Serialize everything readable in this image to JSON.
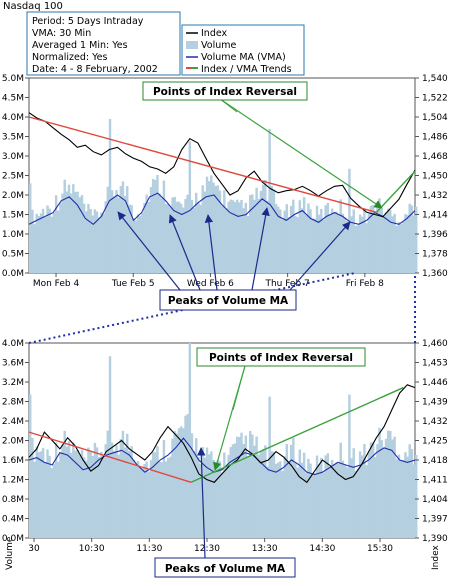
{
  "chart_data": {
    "type": "line",
    "title": "Nasdaq 100",
    "info_box": [
      "Period: 5 Days Intraday",
      "VMA: 30 Min",
      "Averaged 1 Min: Yes",
      "Normalized: Yes",
      "Date: 4 - 8 February, 2002"
    ],
    "legend": [
      {
        "name": "Index",
        "color": "#000000",
        "kind": "line"
      },
      {
        "name": "Volume",
        "color": "#b4cfe0",
        "kind": "box"
      },
      {
        "name": "Volume MA (VMA)",
        "color": "#1f2fa8",
        "kind": "line"
      },
      {
        "name": "Index / VMA Trends",
        "color": "#e0493c",
        "kind": "line2",
        "color2": "#3aa33a"
      }
    ],
    "colors": {
      "index": "#000000",
      "volume": "#b4cfe0",
      "vma": "#1f2fa8",
      "trend_down": "#e0493c",
      "trend_up": "#3aa33a",
      "annotation_fill": "#ffffff",
      "annotation_border": "#2a8a2a",
      "peak_box_border": "#1a2a8a",
      "leader": "#1f2fa8"
    },
    "annotations": {
      "reversal": "Points of Index Reversal",
      "peaks": "Peaks of Volume MA"
    },
    "ylabel_left": "Volume",
    "ylabel_right": "Index",
    "top": {
      "x_categories": [
        "Mon Feb 4",
        "Tue Feb 5",
        "Wed Feb 6",
        "Thu Feb 7",
        "Fri Feb 8"
      ],
      "left_ticks": [
        "0.0M",
        "0.5M",
        "1.0M",
        "1.5M",
        "2.0M",
        "2.5M",
        "3.0M",
        "3.5M",
        "4.0M",
        "4.5M",
        "5.0M"
      ],
      "right_ticks": [
        "1,360",
        "1,378",
        "1,396",
        "1,414",
        "1,432",
        "1,450",
        "1,468",
        "1,486",
        "1,504",
        "1,522",
        "1,540"
      ],
      "ylim_volume": [
        0,
        5.0
      ],
      "ylim_index": [
        1360,
        1540
      ],
      "index": [
        1508,
        1503,
        1500,
        1494,
        1488,
        1483,
        1476,
        1478,
        1472,
        1469,
        1474,
        1476,
        1470,
        1466,
        1463,
        1458,
        1456,
        1452,
        1458,
        1474,
        1484,
        1480,
        1466,
        1452,
        1442,
        1432,
        1436,
        1448,
        1454,
        1444,
        1438,
        1434,
        1436,
        1437,
        1440,
        1436,
        1431,
        1436,
        1440,
        1441,
        1429,
        1422,
        1416,
        1414,
        1412,
        1420,
        1428,
        1442,
        1455
      ],
      "vma": [
        1.25,
        1.35,
        1.45,
        1.55,
        1.85,
        1.95,
        1.75,
        1.4,
        1.25,
        1.45,
        1.85,
        2.0,
        1.85,
        1.35,
        1.55,
        1.95,
        2.05,
        1.85,
        1.6,
        1.5,
        1.6,
        1.8,
        1.95,
        2.0,
        1.75,
        1.55,
        1.45,
        1.5,
        1.7,
        1.9,
        1.75,
        1.45,
        1.35,
        1.5,
        1.6,
        1.4,
        1.3,
        1.45,
        1.55,
        1.45,
        1.3,
        1.25,
        1.35,
        1.55,
        1.45,
        1.3,
        1.25,
        1.4,
        1.6
      ]
    },
    "bottom": {
      "x_categories": [
        "30",
        "10:30",
        "11:30",
        "12:30",
        "13:30",
        "14:30",
        "15:30"
      ],
      "left_ticks": [
        "0.0M",
        "0.4M",
        "0.8M",
        "1.2M",
        "1.6M",
        "2.0M",
        "2.4M",
        "2.8M",
        "3.2M",
        "3.6M",
        "4.0M"
      ],
      "right_ticks": [
        "1,390",
        "1,397",
        "1,404",
        "1,411",
        "1,418",
        "1,425",
        "1,432",
        "1,439",
        "1,446",
        "1,453",
        "1,460"
      ],
      "ylim_volume": [
        0,
        4.0
      ],
      "ylim_index": [
        1390,
        1460
      ],
      "index": [
        1419,
        1422,
        1428,
        1425,
        1422,
        1426,
        1423,
        1418,
        1414,
        1416,
        1421,
        1423,
        1425,
        1422,
        1420,
        1418,
        1421,
        1426,
        1430,
        1427,
        1424,
        1419,
        1413,
        1411,
        1410,
        1413,
        1416,
        1418,
        1422,
        1420,
        1417,
        1418,
        1421,
        1419,
        1416,
        1412,
        1410,
        1414,
        1418,
        1416,
        1413,
        1411,
        1412,
        1416,
        1421,
        1426,
        1430,
        1436,
        1442,
        1445,
        1444
      ],
      "vma": [
        1.6,
        1.65,
        1.55,
        1.5,
        1.75,
        1.7,
        1.55,
        1.4,
        1.45,
        1.6,
        1.7,
        1.75,
        1.8,
        1.7,
        1.5,
        1.35,
        1.45,
        1.6,
        1.7,
        1.85,
        2.05,
        1.85,
        1.6,
        1.45,
        1.35,
        1.4,
        1.55,
        1.65,
        1.75,
        1.7,
        1.55,
        1.4,
        1.35,
        1.45,
        1.6,
        1.5,
        1.35,
        1.3,
        1.35,
        1.45,
        1.55,
        1.5,
        1.45,
        1.5,
        1.6,
        1.75,
        1.85,
        1.8,
        1.6,
        1.55,
        1.6
      ]
    }
  }
}
